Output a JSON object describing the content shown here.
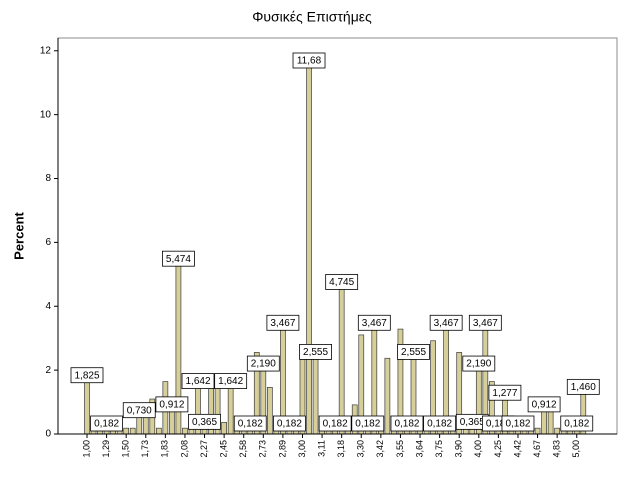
{
  "chart_data": {
    "type": "bar",
    "title": "Φυσικές Επιστήμες",
    "y_label": "Percent",
    "categories": [
      "1,00",
      null,
      null,
      "1,29",
      null,
      null,
      "1,50",
      null,
      null,
      "1,73",
      null,
      null,
      "1,83",
      null,
      null,
      "2,08",
      null,
      null,
      "2,27",
      null,
      null,
      "2,45",
      null,
      null,
      "2,58",
      null,
      null,
      "2,73",
      null,
      null,
      "2,89",
      null,
      null,
      "3,00",
      null,
      null,
      "3,11",
      null,
      null,
      "3,18",
      null,
      null,
      "3,30",
      null,
      null,
      "3,42",
      null,
      null,
      "3,55",
      null,
      null,
      "3,64",
      null,
      null,
      "3,75",
      null,
      null,
      "3,90",
      null,
      null,
      "4,00",
      null,
      null,
      "4,25",
      null,
      null,
      "4,42",
      null,
      null,
      "4,67",
      null,
      null,
      "4,83",
      null,
      null,
      "5,00",
      null
    ],
    "values": [
      1.825,
      0.182,
      0.182,
      0.182,
      0.182,
      0.182,
      0.182,
      0.182,
      0.73,
      0.73,
      1.095,
      0.182,
      1.642,
      0.912,
      5.474,
      0.182,
      0.182,
      1.642,
      0.365,
      1.825,
      1.825,
      0.365,
      1.642,
      0.182,
      0.182,
      0.182,
      2.555,
      2.19,
      1.46,
      0.182,
      3.467,
      0.182,
      0.182,
      2.737,
      11.68,
      2.555,
      0.182,
      0.182,
      0.182,
      4.745,
      0.182,
      0.912,
      3.102,
      0.182,
      3.467,
      0.182,
      2.372,
      0.182,
      3.285,
      0.182,
      2.555,
      0.182,
      0.182,
      2.92,
      0.182,
      3.467,
      0.182,
      2.555,
      0.182,
      0.365,
      2.19,
      3.467,
      1.642,
      0.182,
      1.277,
      0.182,
      0.182,
      0.182,
      0.182,
      0.182,
      0.912,
      0.912,
      0.182,
      0.182,
      0.182,
      0.182,
      1.46
    ],
    "value_labels": [
      "1,825",
      null,
      null,
      "0,182",
      null,
      null,
      null,
      null,
      "0,730",
      null,
      null,
      null,
      null,
      "0,912",
      "5,474",
      null,
      null,
      "1,642",
      "0,365",
      null,
      null,
      null,
      "1,642",
      null,
      null,
      "0,182",
      null,
      "2,190",
      null,
      null,
      "3,467",
      "0,182",
      null,
      null,
      "11,68",
      "2,555",
      null,
      null,
      "0,182",
      "4,745",
      null,
      null,
      null,
      "0,182",
      "3,467",
      null,
      null,
      null,
      null,
      "0,182",
      "2,555",
      null,
      null,
      null,
      "0,182",
      "3,467",
      null,
      null,
      null,
      "0,365",
      "2,190",
      "3,467",
      null,
      "0,182",
      "1,277",
      null,
      "0,182",
      null,
      null,
      null,
      "0,912",
      null,
      null,
      null,
      null,
      "0,182",
      "1,460"
    ],
    "color": "#d6cf99",
    "ylim": [
      0,
      12.4
    ],
    "yticks": [
      0,
      2,
      4,
      6,
      8,
      10,
      12
    ]
  }
}
